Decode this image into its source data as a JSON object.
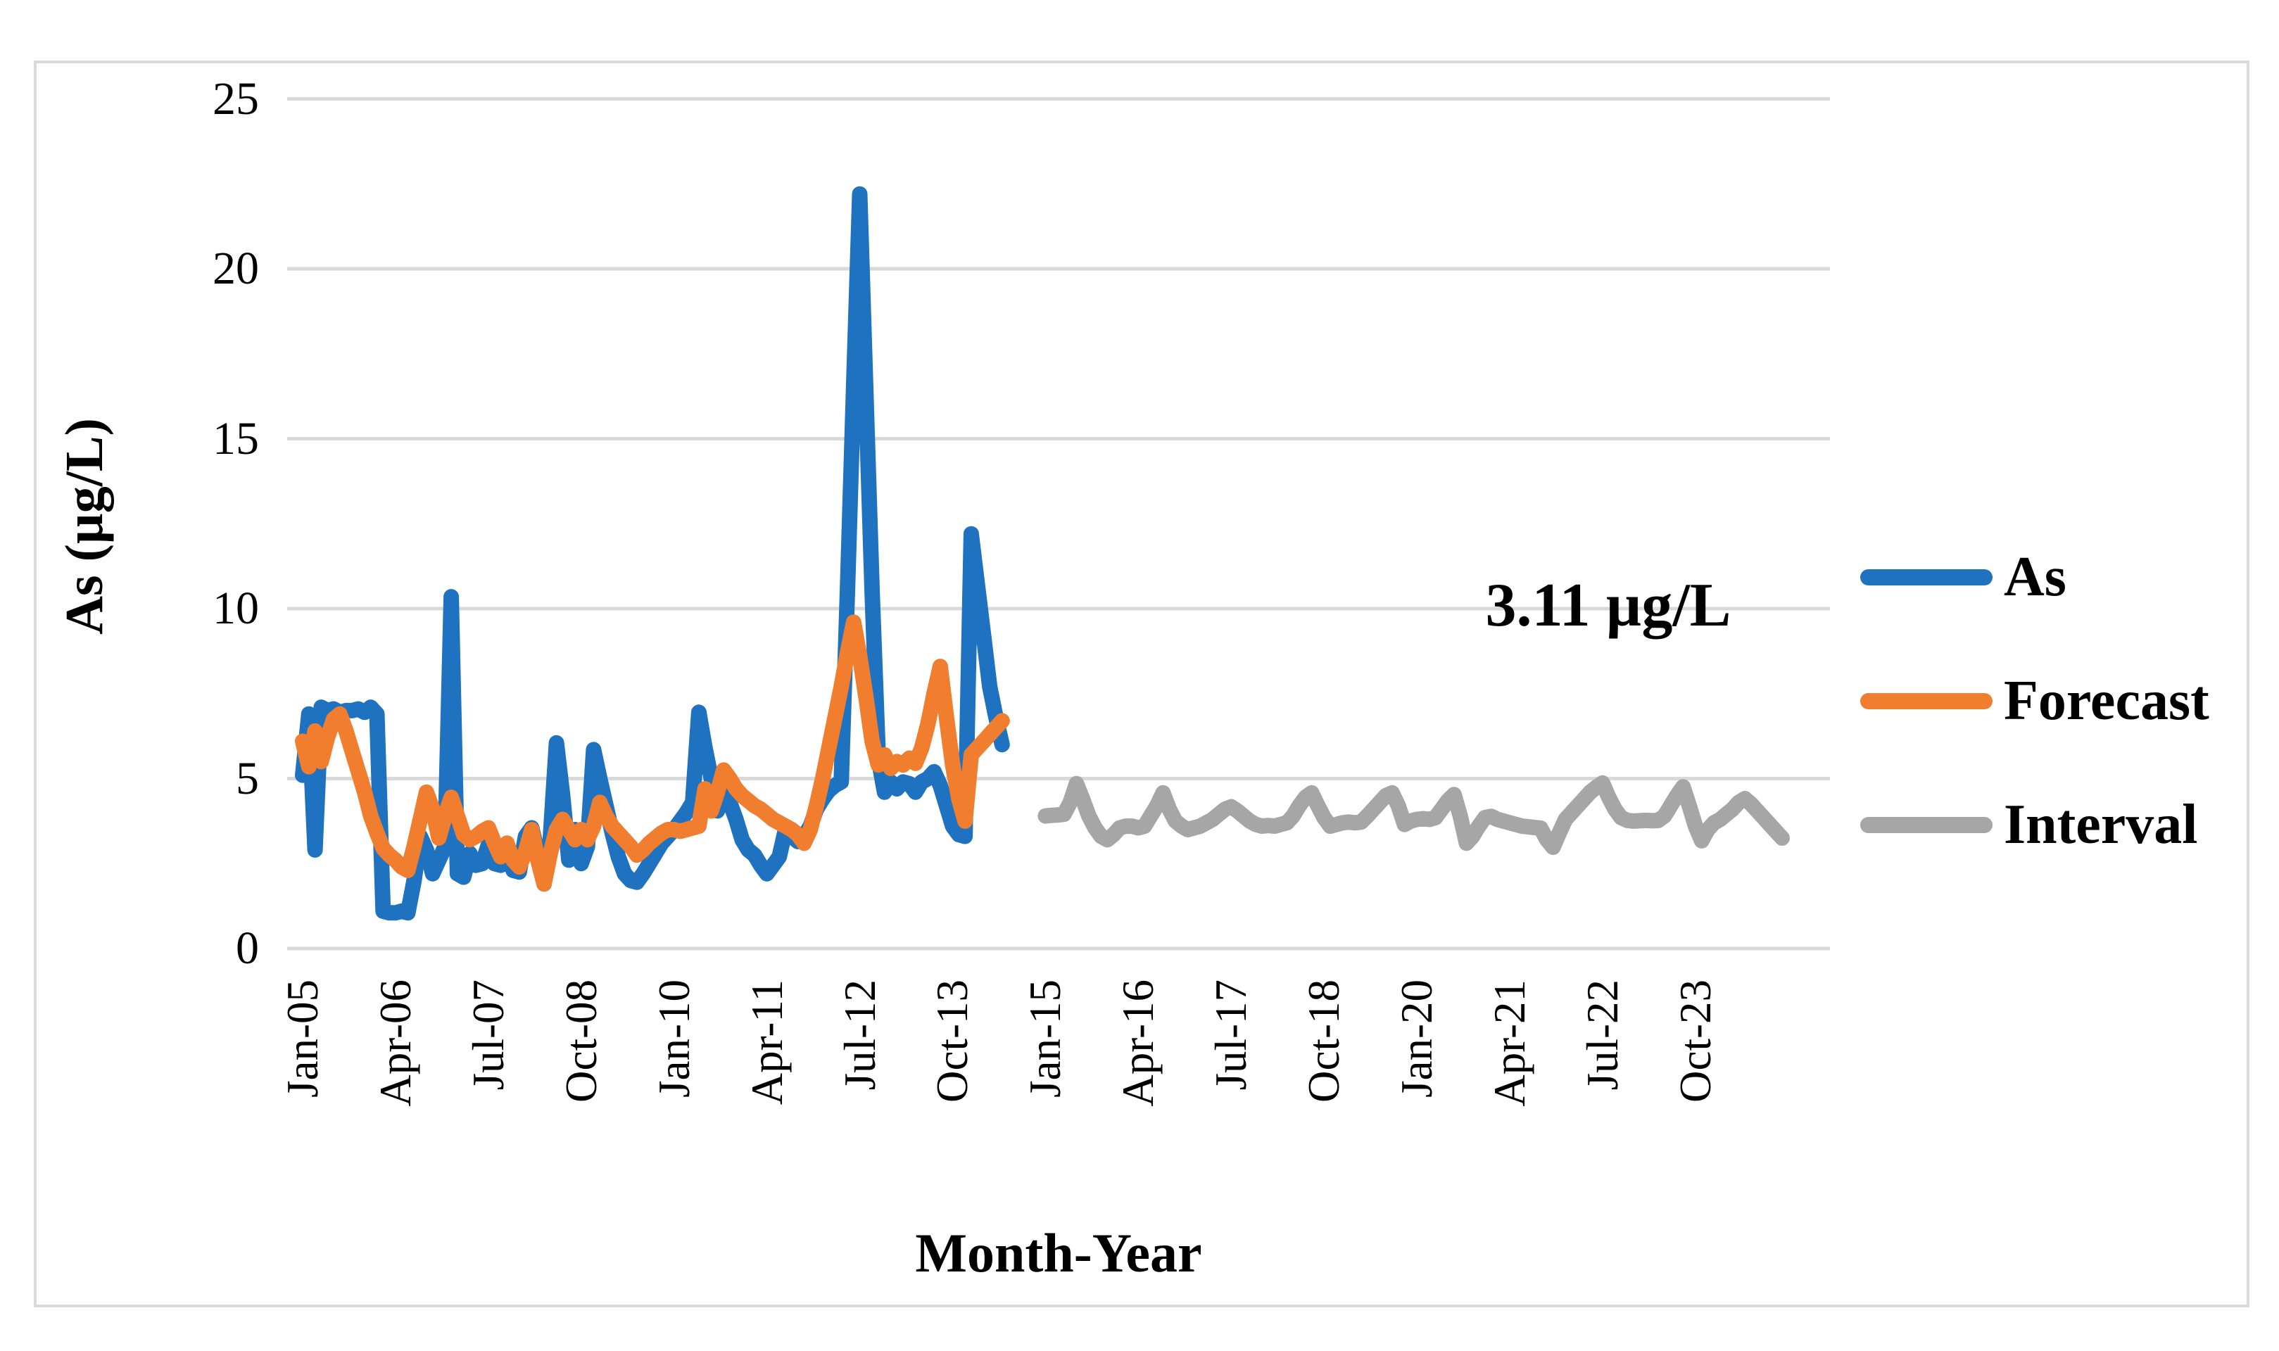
{
  "figure": {
    "y_axis": {
      "title": "As (µg/L)",
      "tick_labels": [
        "0",
        "5",
        "10",
        "15",
        "20",
        "25"
      ]
    },
    "x_axis": {
      "title": "Month-Year",
      "tick_labels": [
        "Jan-05",
        "Apr-06",
        "Jul-07",
        "Oct-08",
        "Jan-10",
        "Apr-11",
        "Jul-12",
        "Oct-13",
        "Jan-15",
        "Apr-16",
        "Jul-17",
        "Oct-18",
        "Jan-20",
        "Apr-21",
        "Jul-22",
        "Oct-23"
      ]
    },
    "annotation": "3.11 µg/L",
    "colors": {
      "as": "#1F72C0",
      "forecast": "#F07E2E",
      "interval": "#A6A6A6",
      "gridline": "#D9D9D9"
    }
  },
  "chart_data": {
    "type": "line",
    "title": "",
    "xlabel": "Month-Year",
    "ylabel": "As (µg/L)",
    "ylim": [
      0,
      25
    ],
    "y_ticks": [
      0,
      5,
      10,
      15,
      20,
      25
    ],
    "x_unit": "month",
    "x_start": "Jan-2005",
    "x_end": "Dec-2024",
    "x_tick_every_months": 15,
    "grid": "horizontal",
    "legend_position": "right",
    "annotation": {
      "text": "3.11 µg/L"
    },
    "series": [
      {
        "name": "As",
        "color": "#1F72C0",
        "start_month": "Jan-2005",
        "values": [
          5.1,
          6.9,
          2.9,
          7.1,
          7.0,
          7.05,
          6.95,
          7.0,
          7.0,
          7.05,
          6.95,
          7.1,
          6.9,
          1.1,
          1.05,
          1.05,
          1.1,
          1.05,
          2.0,
          3.3,
          2.9,
          2.2,
          2.6,
          3.0,
          10.35,
          2.2,
          2.1,
          2.8,
          2.45,
          2.5,
          3.05,
          2.5,
          2.45,
          2.85,
          2.3,
          2.25,
          3.3,
          3.55,
          2.8,
          1.9,
          3.2,
          6.05,
          4.5,
          2.6,
          3.5,
          2.5,
          3.0,
          5.85,
          5.0,
          4.2,
          3.4,
          2.7,
          2.2,
          2.0,
          1.95,
          2.2,
          2.5,
          2.8,
          3.1,
          3.3,
          3.5,
          3.75,
          4.0,
          4.3,
          6.95,
          5.9,
          5.0,
          4.05,
          4.65,
          4.3,
          3.8,
          3.2,
          2.9,
          2.75,
          2.45,
          2.2,
          2.45,
          2.7,
          3.5,
          3.3,
          3.15,
          3.3,
          3.6,
          4.1,
          4.4,
          4.65,
          4.8,
          4.9,
          10.5,
          16.5,
          22.2,
          16.3,
          10.5,
          5.6,
          4.6,
          4.9,
          4.7,
          4.9,
          4.85,
          4.6,
          4.9,
          5.0,
          5.2,
          4.8,
          4.2,
          3.6,
          3.35,
          3.3,
          12.2,
          10.7,
          9.2,
          7.7,
          6.8,
          6.0
        ]
      },
      {
        "name": "Forecast",
        "color": "#F07E2E",
        "start_month": "Jan-2005",
        "values": [
          6.1,
          5.35,
          6.4,
          5.5,
          6.2,
          6.75,
          6.9,
          6.4,
          5.8,
          5.2,
          4.6,
          3.9,
          3.4,
          2.95,
          2.75,
          2.6,
          2.4,
          2.3,
          3.0,
          3.8,
          4.6,
          4.1,
          3.25,
          3.9,
          4.45,
          3.9,
          3.35,
          3.2,
          3.3,
          3.45,
          3.55,
          3.1,
          2.7,
          3.1,
          2.6,
          2.4,
          2.85,
          3.5,
          2.6,
          1.9,
          2.8,
          3.5,
          3.8,
          3.5,
          3.2,
          3.5,
          3.2,
          3.6,
          4.3,
          3.9,
          3.6,
          3.4,
          3.2,
          3.0,
          2.75,
          2.9,
          3.1,
          3.25,
          3.4,
          3.5,
          3.5,
          3.45,
          3.5,
          3.55,
          3.6,
          4.7,
          4.05,
          4.6,
          5.25,
          5.0,
          4.7,
          4.5,
          4.35,
          4.2,
          4.1,
          3.95,
          3.8,
          3.7,
          3.6,
          3.5,
          3.35,
          3.1,
          3.5,
          4.2,
          5.0,
          5.9,
          6.8,
          7.7,
          8.7,
          9.6,
          8.6,
          7.4,
          6.1,
          5.4,
          5.7,
          5.3,
          5.5,
          5.4,
          5.6,
          5.45,
          5.9,
          6.6,
          7.5,
          8.3,
          6.8,
          5.4,
          4.4,
          3.75,
          5.7,
          5.9,
          6.1,
          6.3,
          6.5,
          6.7
        ]
      },
      {
        "name": "Interval",
        "color": "#A6A6A6",
        "start_month": "Jan-2015",
        "values": [
          3.9,
          3.92,
          3.93,
          3.95,
          4.3,
          4.85,
          4.4,
          3.9,
          3.55,
          3.3,
          3.2,
          3.35,
          3.55,
          3.6,
          3.6,
          3.55,
          3.6,
          3.9,
          4.2,
          4.58,
          4.1,
          3.75,
          3.6,
          3.5,
          3.55,
          3.6,
          3.7,
          3.8,
          3.95,
          4.1,
          4.17,
          4.05,
          3.9,
          3.75,
          3.65,
          3.6,
          3.62,
          3.6,
          3.65,
          3.7,
          3.9,
          4.2,
          4.45,
          4.58,
          4.2,
          3.85,
          3.6,
          3.65,
          3.7,
          3.72,
          3.7,
          3.72,
          3.9,
          4.1,
          4.3,
          4.5,
          4.58,
          4.2,
          3.65,
          3.75,
          3.8,
          3.82,
          3.8,
          3.85,
          4.1,
          4.35,
          4.53,
          3.9,
          3.1,
          3.3,
          3.6,
          3.85,
          3.89,
          3.8,
          3.75,
          3.7,
          3.65,
          3.6,
          3.58,
          3.56,
          3.54,
          3.2,
          2.98,
          3.4,
          3.8,
          4.0,
          4.2,
          4.4,
          4.6,
          4.75,
          4.87,
          4.45,
          4.1,
          3.85,
          3.77,
          3.75,
          3.76,
          3.77,
          3.76,
          3.77,
          3.9,
          4.2,
          4.5,
          4.76,
          4.2,
          3.6,
          3.17,
          3.5,
          3.7,
          3.8,
          3.95,
          4.1,
          4.3,
          4.41,
          4.25,
          4.05,
          3.85,
          3.65,
          3.45,
          3.25
        ]
      }
    ]
  }
}
